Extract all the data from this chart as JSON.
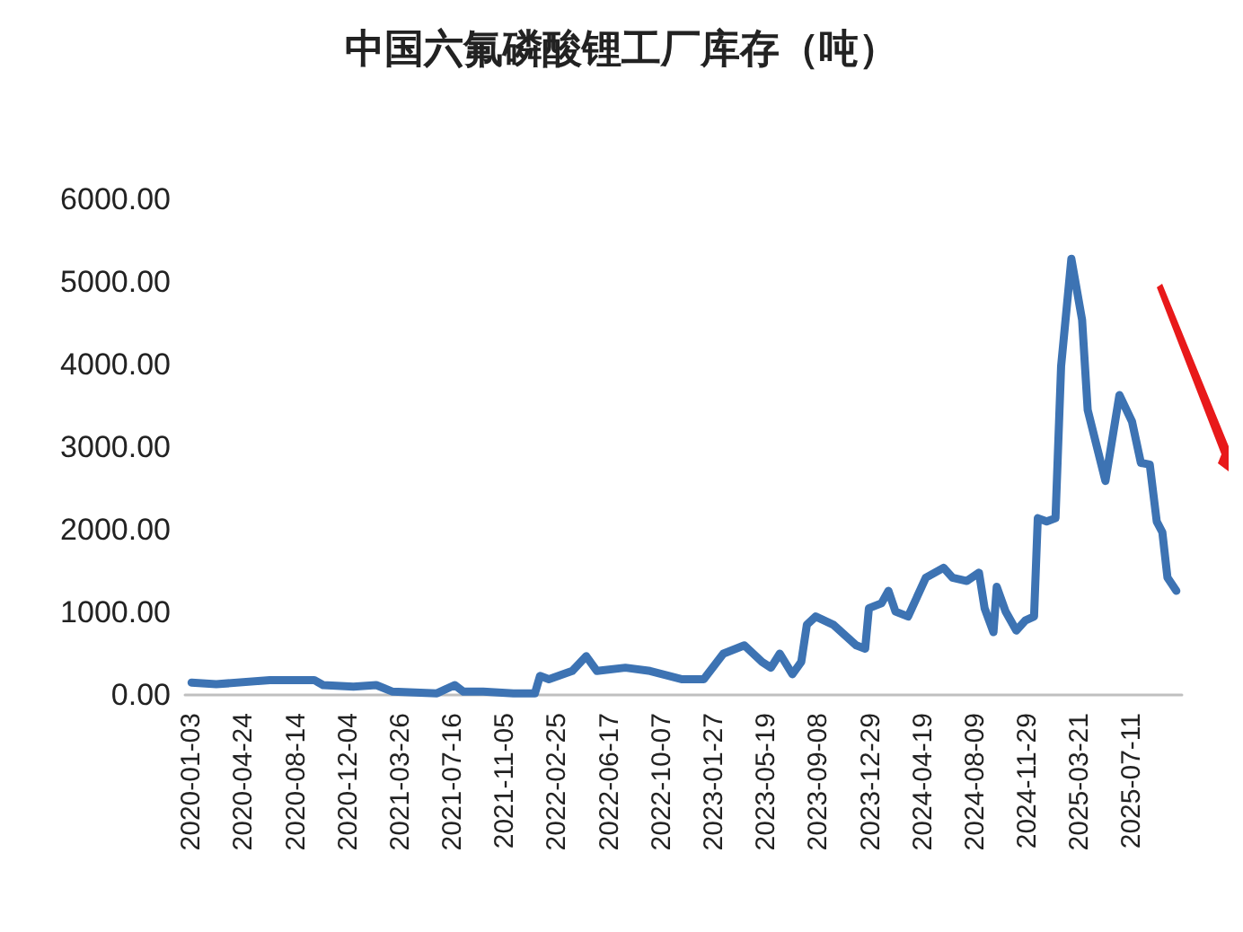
{
  "chart_data": {
    "type": "line",
    "title": "中国六氟磷酸锂工厂库存（吨）",
    "x": [
      "2020-01-03",
      "2020-02-25",
      "2020-06-19",
      "2020-09-22",
      "2020-10-11",
      "2020-12-15",
      "2021-02-02",
      "2021-03-09",
      "2021-06-12",
      "2021-07-20",
      "2021-08-08",
      "2021-09-19",
      "2021-11-23",
      "2022-01-08",
      "2022-01-19",
      "2022-02-07",
      "2022-03-29",
      "2022-04-28",
      "2022-05-21",
      "2022-07-21",
      "2022-09-12",
      "2022-11-20",
      "2023-01-05",
      "2023-02-16",
      "2023-04-02",
      "2023-05-10",
      "2023-05-29",
      "2023-06-17",
      "2023-07-14",
      "2023-08-02",
      "2023-08-14",
      "2023-09-02",
      "2023-10-10",
      "2023-11-28",
      "2023-12-17",
      "2023-12-25",
      "2024-01-21",
      "2024-02-05",
      "2024-02-20",
      "2024-03-18",
      "2024-04-25",
      "2024-06-02",
      "2024-06-21",
      "2024-07-22",
      "2024-08-17",
      "2024-08-29",
      "2024-09-17",
      "2024-09-24",
      "2024-10-13",
      "2024-11-05",
      "2024-11-24",
      "2024-12-13",
      "2024-12-21",
      "2025-01-09",
      "2025-01-28",
      "2025-02-09",
      "2025-03-03",
      "2025-03-26",
      "2025-04-07",
      "2025-05-15",
      "2025-06-14",
      "2025-07-11",
      "2025-07-30",
      "2025-08-18",
      "2025-09-02",
      "2025-09-14",
      "2025-09-25",
      "2025-10-14"
    ],
    "series": [
      {
        "color": "#3d73b3",
        "values": [
          150,
          130,
          180,
          180,
          120,
          100,
          120,
          40,
          20,
          120,
          40,
          40,
          20,
          20,
          230,
          190,
          290,
          470,
          290,
          330,
          290,
          190,
          190,
          500,
          600,
          400,
          330,
          500,
          250,
          400,
          850,
          950,
          850,
          600,
          560,
          1050,
          1110,
          1260,
          1010,
          950,
          1420,
          1540,
          1420,
          1380,
          1480,
          1050,
          760,
          1310,
          1010,
          780,
          900,
          950,
          2140,
          2100,
          2140,
          3980,
          5280,
          4540,
          3450,
          2590,
          3630,
          3310,
          2810,
          2790,
          2100,
          1970,
          1420,
          1260
        ]
      }
    ],
    "xlim": [
      "2019-12-20",
      "2025-10-26"
    ],
    "xticks": [
      "2020-01-03",
      "2020-04-24",
      "2020-08-14",
      "2020-12-04",
      "2021-03-26",
      "2021-07-16",
      "2021-11-05",
      "2022-02-25",
      "2022-06-17",
      "2022-10-07",
      "2023-01-27",
      "2023-05-19",
      "2023-09-08",
      "2023-12-29",
      "2024-04-19",
      "2024-08-09",
      "2024-11-29",
      "2025-03-21",
      "2025-07-11"
    ],
    "ylim": [
      0,
      6000
    ],
    "yticks": [
      {
        "value": 0,
        "label": "0.00"
      },
      {
        "value": 1000,
        "label": "1000.00"
      },
      {
        "value": 2000,
        "label": "2000.00"
      },
      {
        "value": 3000,
        "label": "3000.00"
      },
      {
        "value": 4000,
        "label": "4000.00"
      },
      {
        "value": 5000,
        "label": "5000.00"
      },
      {
        "value": 6000,
        "label": "6000.00"
      }
    ],
    "grid": false,
    "marker": "none",
    "line_style": "solid"
  }
}
